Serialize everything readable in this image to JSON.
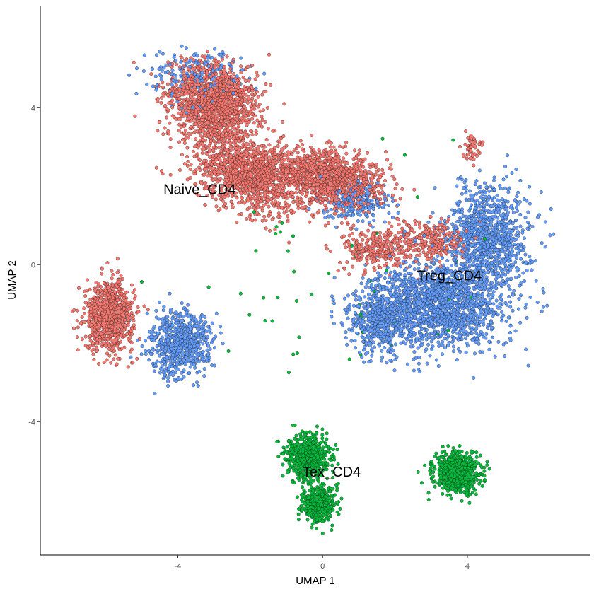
{
  "chart_data": {
    "type": "scatter",
    "title": "",
    "xlabel": "UMAP 1",
    "ylabel": "UMAP 2",
    "xlim": [
      -7.8,
      7.4
    ],
    "ylim": [
      -7.4,
      6.6
    ],
    "xticks": [
      -4,
      0,
      4
    ],
    "yticks": [
      -4,
      0,
      4
    ],
    "x_tick_labels": [
      "-4",
      "0",
      "4"
    ],
    "y_tick_labels": [
      "-4",
      "0",
      "4"
    ],
    "grid": false,
    "legend": "none",
    "point_groups": [
      {
        "color": "#F8766D",
        "clusters": [
          {
            "cx": -3.0,
            "cy": 4.1,
            "sx": 1.1,
            "sy": 0.9,
            "weight": 10,
            "rot": -20
          },
          {
            "cx": -2.0,
            "cy": 2.3,
            "sx": 1.4,
            "sy": 0.8,
            "weight": 9,
            "rot": -20
          },
          {
            "cx": 0.2,
            "cy": 2.2,
            "sx": 1.4,
            "sy": 0.6,
            "weight": 8,
            "rot": -10
          },
          {
            "cx": -5.9,
            "cy": -1.3,
            "sx": 0.6,
            "sy": 0.8,
            "weight": 6,
            "rot": 0
          },
          {
            "cx": 1.5,
            "cy": 0.4,
            "sx": 0.8,
            "sy": 0.5,
            "weight": 2,
            "rot": 0
          },
          {
            "cx": 3.0,
            "cy": 0.6,
            "sx": 0.9,
            "sy": 0.5,
            "weight": 2,
            "rot": 0
          },
          {
            "cx": 4.1,
            "cy": 3.0,
            "sx": 0.2,
            "sy": 0.3,
            "weight": 0.4,
            "rot": 0
          }
        ]
      },
      {
        "color": "#619CFF",
        "clusters": [
          {
            "cx": 3.3,
            "cy": -1.0,
            "sx": 1.6,
            "sy": 1.0,
            "weight": 11,
            "rot": 0
          },
          {
            "cx": 4.6,
            "cy": 0.7,
            "sx": 1.0,
            "sy": 1.2,
            "weight": 7,
            "rot": 0
          },
          {
            "cx": 1.6,
            "cy": -1.4,
            "sx": 0.9,
            "sy": 0.8,
            "weight": 4,
            "rot": 0
          },
          {
            "cx": -3.9,
            "cy": -2.0,
            "sx": 0.8,
            "sy": 0.7,
            "weight": 5,
            "rot": 30
          },
          {
            "cx": -3.5,
            "cy": 4.8,
            "sx": 1.2,
            "sy": 0.6,
            "weight": 1.5,
            "rot": 0
          },
          {
            "cx": 1.0,
            "cy": 1.6,
            "sx": 0.8,
            "sy": 0.5,
            "weight": 1.5,
            "rot": 0
          }
        ]
      },
      {
        "color": "#00BA38",
        "clusters": [
          {
            "cx": -0.4,
            "cy": -4.9,
            "sx": 0.5,
            "sy": 0.5,
            "weight": 5,
            "rot": 0
          },
          {
            "cx": -0.1,
            "cy": -6.1,
            "sx": 0.4,
            "sy": 0.4,
            "weight": 3,
            "rot": 0
          },
          {
            "cx": 3.7,
            "cy": -5.3,
            "sx": 0.55,
            "sy": 0.45,
            "weight": 5,
            "rot": 0
          },
          {
            "cx": 0.5,
            "cy": -0.5,
            "sx": 3.5,
            "sy": 2.5,
            "weight": 0.4,
            "rot": 0
          }
        ]
      }
    ],
    "cluster_labels": [
      {
        "text": "Naive_CD4",
        "x": -3.4,
        "y": 1.8
      },
      {
        "text": "Treg_CD4",
        "x": 3.5,
        "y": -0.4
      },
      {
        "text": "Tex_CD4",
        "x": 0.25,
        "y": -5.4
      }
    ]
  }
}
